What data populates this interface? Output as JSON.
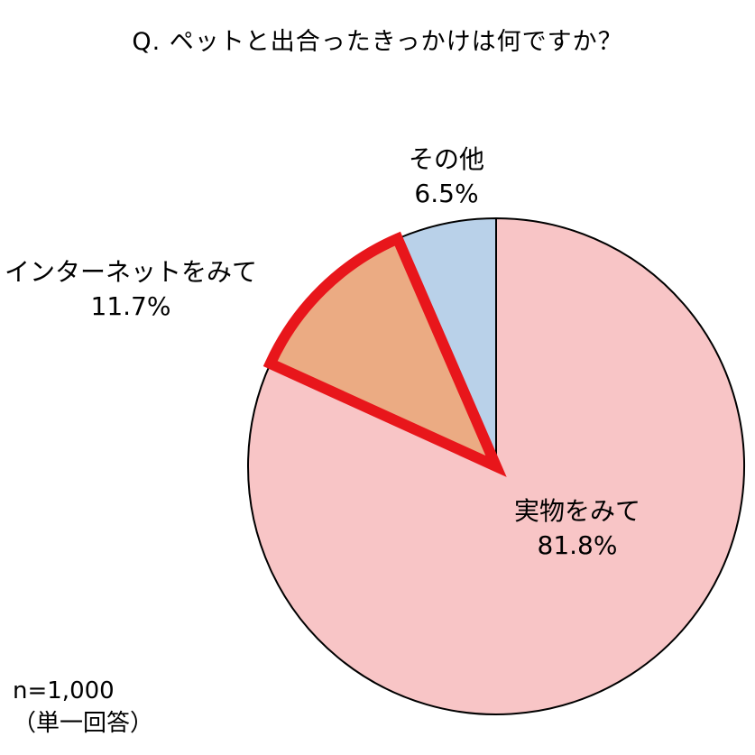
{
  "chart_data": {
    "type": "pie",
    "title": "Q. ペットと出合ったきっかけは何ですか？",
    "slices": [
      {
        "label": "実物をみて",
        "value": 81.8,
        "value_label": "81.8%",
        "color": "#f8c5c6",
        "highlight": false
      },
      {
        "label": "インターネットをみて",
        "value": 11.7,
        "value_label": "11.7%",
        "color": "#ebab83",
        "highlight": true
      },
      {
        "label": "その他",
        "value": 6.5,
        "value_label": "6.5%",
        "color": "#b9d1e9",
        "highlight": false
      }
    ],
    "highlight_color": "#e8161b",
    "start": "12 o'clock",
    "direction": "clockwise"
  },
  "note": {
    "sample": "n=1,000",
    "answer_type": "（単一回答）"
  }
}
